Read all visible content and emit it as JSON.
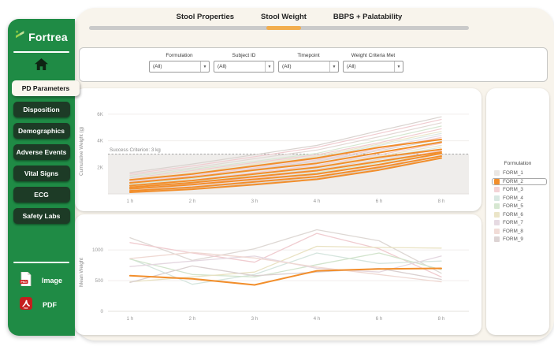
{
  "colors": {
    "sidebar_green": "#1f8b45",
    "nav_dark_green": "#1d3b26",
    "cream_background": "#f8f4ec",
    "accent_orange": "#f28e2b",
    "progress_orange": "#f2ad4d",
    "progress_track_gray": "#cacaca",
    "pdf_red": "#c41e1e"
  },
  "sidebar": {
    "brand": "Fortrea",
    "items": [
      {
        "label": "PD Parameters",
        "active": true
      },
      {
        "label": "Disposition",
        "active": false
      },
      {
        "label": "Demographics",
        "active": false
      },
      {
        "label": "Adverse Events",
        "active": false
      },
      {
        "label": "Vital Signs",
        "active": false
      },
      {
        "label": "ECG",
        "active": false
      },
      {
        "label": "Safety Labs",
        "active": false
      }
    ],
    "exports": [
      {
        "label": "Image",
        "icon": "png-file-icon"
      },
      {
        "label": "PDF",
        "icon": "pdf-file-icon"
      }
    ]
  },
  "header": {
    "tabs": [
      {
        "label": "Stool Properties",
        "active": false
      },
      {
        "label": "Stool Weight",
        "active": true
      },
      {
        "label": "BBPS + Palatability",
        "active": false
      }
    ]
  },
  "filters": [
    {
      "label": "Formulation",
      "value": "(All)"
    },
    {
      "label": "Subject ID",
      "value": "(All)"
    },
    {
      "label": "Timepoint",
      "value": "(All)"
    },
    {
      "label": "Weight Criteria Met",
      "value": "(All)"
    }
  ],
  "legend": {
    "title": "Formulation",
    "items": [
      {
        "label": "FORM_1",
        "color": "#eae7e4",
        "selected": false
      },
      {
        "label": "FORM_2",
        "color": "#f28e2b",
        "selected": true
      },
      {
        "label": "FORM_3",
        "color": "#f3d3d6",
        "selected": false
      },
      {
        "label": "FORM_4",
        "color": "#d9e8e2",
        "selected": false
      },
      {
        "label": "FORM_5",
        "color": "#d6e7d1",
        "selected": false
      },
      {
        "label": "FORM_6",
        "color": "#ebe5c8",
        "selected": false
      },
      {
        "label": "FORM_7",
        "color": "#e6dae2",
        "selected": false
      },
      {
        "label": "FORM_8",
        "color": "#f1dcd7",
        "selected": false
      },
      {
        "label": "FORM_9",
        "color": "#ddd4d4",
        "selected": false
      }
    ]
  },
  "chart_data": [
    {
      "type": "line",
      "name": "cumulative-stool-weight",
      "ylabel": "Cumulative Weight (g)",
      "categories": [
        "1 h",
        "2 h",
        "3 h",
        "4 h",
        "6 h",
        "8 h"
      ],
      "ylim": [
        0,
        7000
      ],
      "yticks": [
        {
          "value": 2000,
          "label": "2K"
        },
        {
          "value": 4000,
          "label": "4K"
        },
        {
          "value": 6000,
          "label": "6K"
        }
      ],
      "ref_line": {
        "value": 3000,
        "label": "Success Criterion: 3 kg",
        "shade_below": true
      },
      "series": [
        {
          "name": "FORM_1",
          "color": "#d9d3cf",
          "width": 1.2,
          "values": [
            1600,
            2250,
            2950,
            3650,
            4750,
            5800
          ]
        },
        {
          "name": "FORM_3",
          "color": "#f0ccd0",
          "width": 1.2,
          "values": [
            1500,
            2100,
            2800,
            3500,
            4550,
            5600
          ]
        },
        {
          "name": "FORM_9",
          "color": "#e2d8d4",
          "width": 1.2,
          "values": [
            1400,
            1950,
            2650,
            3300,
            4300,
            5350
          ]
        },
        {
          "name": "FORM_5",
          "color": "#d6e7d1",
          "width": 1.2,
          "values": [
            1300,
            1850,
            2450,
            3050,
            4050,
            5100
          ]
        },
        {
          "name": "FORM_8",
          "color": "#f0ccd0",
          "width": 1.2,
          "values": [
            1200,
            1750,
            2350,
            2950,
            3850,
            4900
          ]
        },
        {
          "name": "FORM_6",
          "color": "#ebe5c8",
          "width": 1.2,
          "values": [
            1100,
            1650,
            2250,
            2850,
            3750,
            4700
          ]
        },
        {
          "name": "FORM_4",
          "color": "#d9e8e2",
          "width": 1.2,
          "values": [
            1020,
            1550,
            2150,
            2750,
            3650,
            4550
          ]
        },
        {
          "name": "FORM_7",
          "color": "#e6dae2",
          "width": 1.2,
          "values": [
            950,
            1450,
            2050,
            2650,
            3450,
            4400
          ]
        },
        {
          "name": "FORM_3",
          "color": "#f0ccd0",
          "width": 1.2,
          "values": [
            880,
            1350,
            1950,
            2550,
            3350,
            4250
          ]
        },
        {
          "name": "FORM_1",
          "color": "#d9d3cf",
          "width": 1.2,
          "values": [
            800,
            1250,
            1850,
            2450,
            3250,
            4100
          ]
        },
        {
          "name": "FORM_5",
          "color": "#d6e7d1",
          "width": 1.2,
          "values": [
            720,
            1150,
            1750,
            2300,
            3100,
            3950
          ]
        },
        {
          "name": "FORM_8",
          "color": "#f0ccd0",
          "width": 1.2,
          "values": [
            650,
            1050,
            1600,
            2150,
            2950,
            3800
          ]
        },
        {
          "name": "FORM_6",
          "color": "#ebe5c8",
          "width": 1.2,
          "values": [
            580,
            980,
            1500,
            2050,
            2850,
            3650
          ]
        },
        {
          "name": "FORM_4",
          "color": "#d9e8e2",
          "width": 1.2,
          "values": [
            520,
            900,
            1400,
            1950,
            2750,
            3500
          ]
        },
        {
          "name": "FORM_9",
          "color": "#e2d8d4",
          "width": 1.2,
          "values": [
            460,
            820,
            1300,
            1850,
            2600,
            3350
          ]
        },
        {
          "name": "FORM_3",
          "color": "#f0ccd0",
          "width": 1.2,
          "values": [
            400,
            750,
            1200,
            1700,
            2450,
            3250
          ]
        },
        {
          "name": "FORM_5",
          "color": "#d6e7d1",
          "width": 1.2,
          "values": [
            340,
            680,
            1100,
            1600,
            2350,
            3150
          ]
        },
        {
          "name": "FORM_7",
          "color": "#e6dae2",
          "width": 1.2,
          "values": [
            280,
            580,
            980,
            1450,
            2200,
            3000
          ]
        },
        {
          "name": "FORM_8",
          "color": "#f0ccd0",
          "width": 1.2,
          "values": [
            210,
            480,
            880,
            1300,
            2050,
            2850
          ]
        },
        {
          "name": "FORM_1",
          "color": "#d9d3cf",
          "width": 1.2,
          "values": [
            150,
            400,
            780,
            1180,
            1900,
            2700
          ]
        },
        {
          "name": "FORM_2",
          "color": "#f28e2b",
          "width": 2,
          "values": [
            1050,
            1500,
            2100,
            2700,
            3500,
            4100
          ]
        },
        {
          "name": "FORM_2",
          "color": "#f28e2b",
          "width": 2,
          "values": [
            830,
            1250,
            1800,
            2300,
            3100,
            3900
          ]
        },
        {
          "name": "FORM_2",
          "color": "#f28e2b",
          "width": 2,
          "values": [
            620,
            1000,
            1500,
            2000,
            2750,
            3350
          ]
        },
        {
          "name": "FORM_2",
          "color": "#f28e2b",
          "width": 2,
          "values": [
            500,
            850,
            1300,
            1750,
            2450,
            3150
          ]
        },
        {
          "name": "FORM_2",
          "color": "#f28e2b",
          "width": 2,
          "values": [
            380,
            700,
            1100,
            1500,
            2200,
            3050
          ]
        },
        {
          "name": "FORM_2",
          "color": "#f28e2b",
          "width": 2,
          "values": [
            230,
            500,
            900,
            1300,
            2000,
            2850
          ]
        },
        {
          "name": "FORM_2",
          "color": "#f28e2b",
          "width": 2,
          "values": [
            120,
            350,
            700,
            1100,
            1800,
            2700
          ]
        }
      ]
    },
    {
      "type": "line",
      "name": "mean-stool-weight",
      "ylabel": "Mean Weight",
      "categories": [
        "1 h",
        "2 h",
        "3 h",
        "4 h",
        "6 h",
        "8 h"
      ],
      "ylim": [
        0,
        1400
      ],
      "yticks": [
        {
          "value": 0,
          "label": "0"
        },
        {
          "value": 500,
          "label": "500"
        },
        {
          "value": 1000,
          "label": "1000"
        }
      ],
      "series": [
        {
          "name": "FORM_1",
          "color": "#ded8d4",
          "width": 1.3,
          "values": [
            1200,
            830,
            1020,
            1330,
            1150,
            620
          ]
        },
        {
          "name": "FORM_3",
          "color": "#f0ccd0",
          "width": 1.3,
          "values": [
            1120,
            950,
            800,
            1270,
            1020,
            560
          ]
        },
        {
          "name": "FORM_4",
          "color": "#d5e5de",
          "width": 1.3,
          "values": [
            860,
            440,
            600,
            950,
            780,
            820
          ]
        },
        {
          "name": "FORM_5",
          "color": "#d2e4cc",
          "width": 1.3,
          "values": [
            850,
            600,
            560,
            760,
            950,
            680
          ]
        },
        {
          "name": "FORM_6",
          "color": "#e9e2c2",
          "width": 1.3,
          "values": [
            480,
            560,
            640,
            1060,
            1040,
            1030
          ]
        },
        {
          "name": "FORM_7",
          "color": "#e4d7e0",
          "width": 1.3,
          "values": [
            730,
            820,
            900,
            700,
            640,
            900
          ]
        },
        {
          "name": "FORM_8",
          "color": "#efd8d2",
          "width": 1.3,
          "values": [
            860,
            960,
            870,
            720,
            600,
            480
          ]
        },
        {
          "name": "FORM_9",
          "color": "#dad0d0",
          "width": 1.3,
          "values": [
            470,
            740,
            580,
            640,
            700,
            520
          ]
        },
        {
          "name": "FORM_2",
          "color": "#f28e2b",
          "width": 2,
          "values": [
            580,
            530,
            430,
            660,
            690,
            700
          ]
        }
      ]
    }
  ]
}
